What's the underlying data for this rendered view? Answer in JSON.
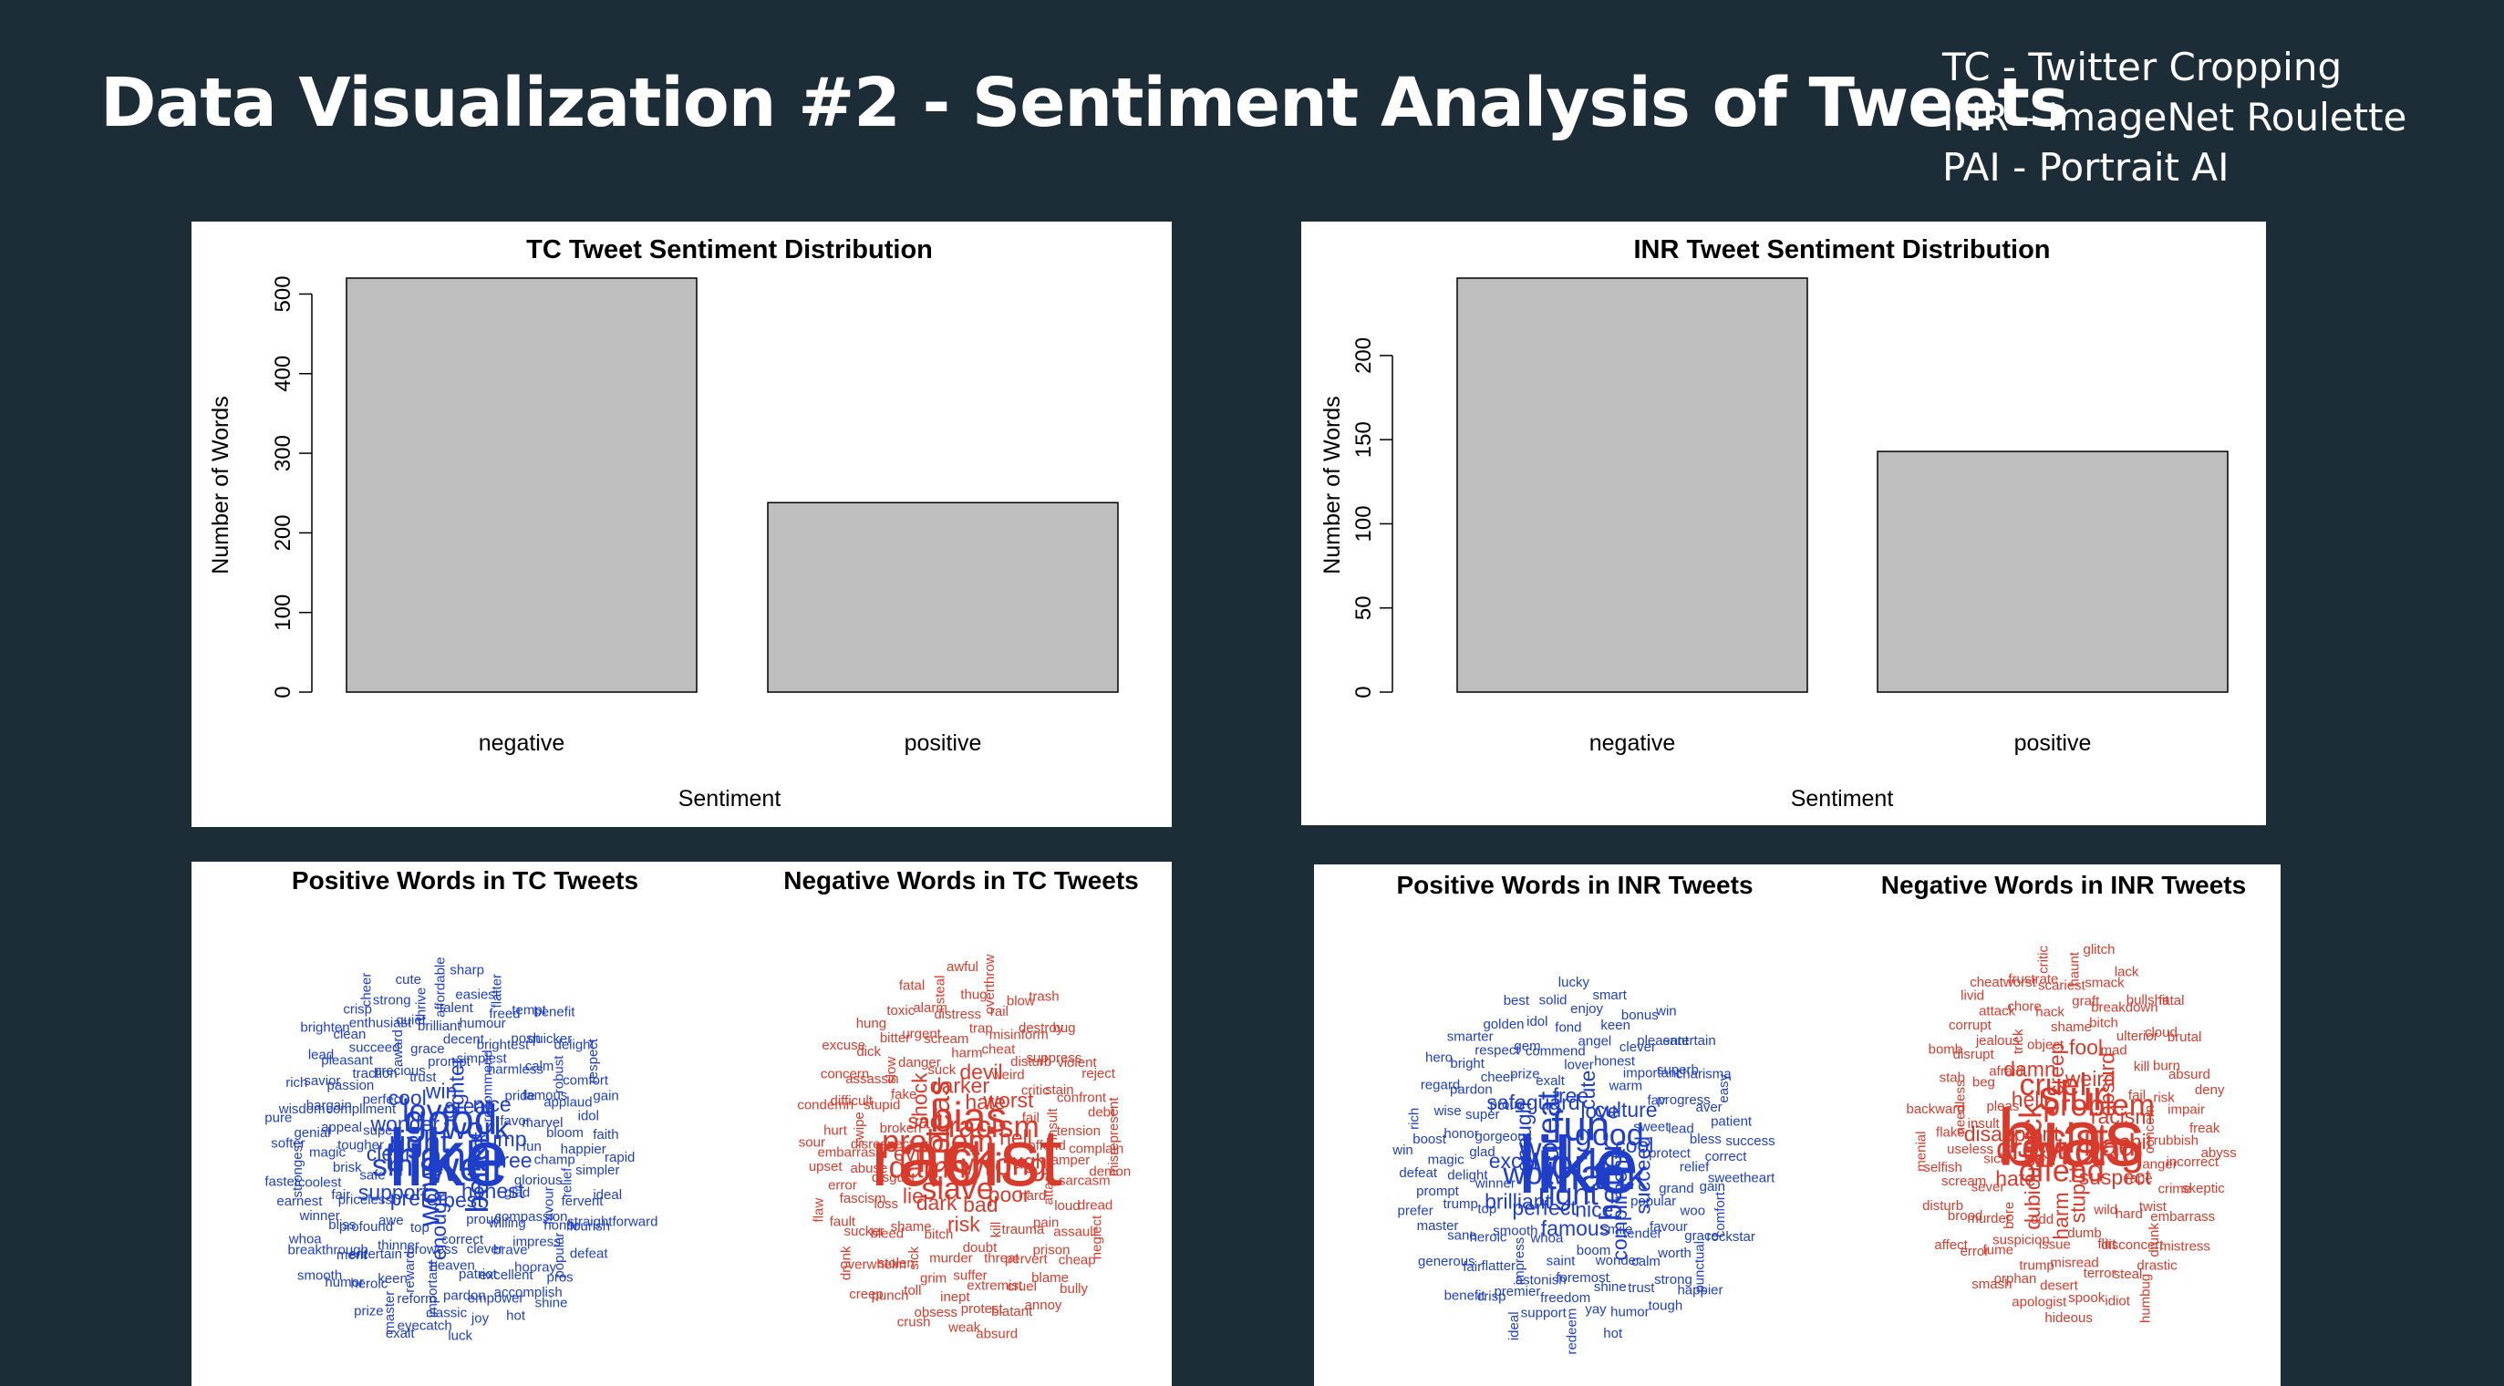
{
  "slide": {
    "title": "Data Visualization #2 - Sentiment Analysis of Tweets",
    "legend": [
      "TC - Twitter Cropping",
      "INR - ImageNet Roulette",
      "PAI - Portrait AI"
    ]
  },
  "colors": {
    "background": "#1c2d38",
    "bar_fill": "#bebebe",
    "positive_words": "#1f3fc8",
    "negative_words": "#d83b2c"
  },
  "chart_data": [
    {
      "type": "bar",
      "title": "TC Tweet Sentiment Distribution",
      "categories": [
        "negative",
        "positive"
      ],
      "values": [
        520,
        238
      ],
      "xlabel": "Sentiment",
      "ylabel": "Number of Words",
      "ylim": [
        0,
        520
      ],
      "yticks": [
        0,
        100,
        200,
        300,
        400,
        500
      ],
      "grid": false
    },
    {
      "type": "bar",
      "title": "INR Tweet Sentiment Distribution",
      "categories": [
        "negative",
        "positive"
      ],
      "values": [
        246,
        143
      ],
      "xlabel": "Sentiment",
      "ylabel": "Number of Words",
      "ylim": [
        0,
        246
      ],
      "yticks": [
        0,
        50,
        100,
        150,
        200
      ],
      "grid": false
    }
  ],
  "wordclouds": {
    "tc_positive": {
      "title": "Positive Words in TC Tweets",
      "words": [
        "like",
        "thank",
        "good",
        "well",
        "right",
        "work",
        "wow",
        "love",
        "better",
        "smile",
        "great",
        "best",
        "wonder",
        "trump",
        "prefer",
        "win",
        "honest",
        "clear",
        "nice",
        "enough",
        "cool",
        "free",
        "support",
        "lighter",
        "proud",
        "super",
        "favor",
        "top",
        "trust",
        "glad",
        "safe",
        "recommend",
        "correct",
        "perfect",
        "fun",
        "awe",
        "prompt",
        "willing",
        "tougher",
        "pride",
        "prowess",
        "precious",
        "glorious",
        "priceless",
        "simplest",
        "clever",
        "compliment",
        "marvel",
        "thinner",
        "grace",
        "compassion",
        "brisk",
        "harmless",
        "heaven",
        "traction",
        "champ",
        "profound",
        "decent",
        "brave",
        "appeal",
        "famous",
        "reward",
        "award",
        "favour",
        "fair",
        "brightest",
        "patriot",
        "passion",
        "bloom",
        "entertain",
        "brilliant",
        "impress",
        "magic",
        "calm",
        "important",
        "succeed",
        "relief",
        "bliss",
        "humour",
        "excellent",
        "bargain",
        "applaud",
        "keen",
        "quiet",
        "honor",
        "coolest",
        "posh",
        "pardon",
        "pleasant",
        "happier",
        "merit",
        "talent",
        "hooray",
        "genial",
        "robust",
        "reform",
        "enthusiast",
        "fervent",
        "winner",
        "freed",
        "empower",
        "savior",
        "idol",
        "heroic",
        "thrive",
        "popular",
        "strongest",
        "quicker",
        "classic",
        "clean",
        "simpler",
        "breakthrough",
        "easiest",
        "accomplish",
        "wisdom",
        "comfort",
        "master",
        "strong",
        "flourish",
        "earnest",
        "tempt",
        "joy",
        "lead",
        "faith",
        "humor",
        "affordable",
        "pros",
        "softer",
        "delight",
        "eyecatch",
        "crisp",
        "ideal",
        "whoa",
        "flatter",
        "hot",
        "rich",
        "gain",
        "prize",
        "cute",
        "defeat",
        "faster",
        "benefit",
        "luck",
        "brighten",
        "rapid",
        "smooth",
        "sharp",
        "shine",
        "pure",
        "respect",
        "exalt",
        "cheer",
        "straightforward"
      ]
    },
    "tc_negative": {
      "title": "Negative Words in TC Tweets",
      "words": [
        "racist",
        "fuck",
        "bias",
        "shit",
        "problem",
        "racism",
        "slave",
        "pleas",
        "wrong",
        "damn",
        "hate",
        "bad",
        "sad",
        "hell",
        "dark",
        "darker",
        "poor",
        "evil",
        "worst",
        "risk",
        "shock",
        "ugh",
        "lie",
        "devil",
        "kill",
        "broken",
        "fail",
        "bitch",
        "suck",
        "hard",
        "disgust",
        "weird",
        "doubt",
        "fake",
        "offend",
        "shame",
        "harm",
        "trauma",
        "disrespect",
        "critic",
        "murder",
        "danger",
        "attack",
        "loss",
        "cheat",
        "threat",
        "stupid",
        "insult",
        "sick",
        "scream",
        "pain",
        "abuse",
        "disturb",
        "suffer",
        "slow",
        "tamper",
        "bleed",
        "trap",
        "pervert",
        "swipe",
        "stain",
        "grim",
        "urgent",
        "loud",
        "fascism",
        "misinform",
        "extremist",
        "assassin",
        "tension",
        "stolen",
        "distress",
        "prison",
        "embarrass",
        "suppress",
        "inept",
        "bitter",
        "sarcasm",
        "sucker",
        "rail",
        "cruel",
        "difficult",
        "confront",
        "toll",
        "alarm",
        "assault",
        "error",
        "destroy",
        "protest",
        "dick",
        "complain",
        "overwhelm",
        "thug",
        "blame",
        "hurt",
        "violent",
        "obsess",
        "toxic",
        "dread",
        "fault",
        "blow",
        "blatant",
        "concern",
        "debt",
        "punch",
        "steal",
        "cheap",
        "upset",
        "bug",
        "weak",
        "hung",
        "demon",
        "drunk",
        "overthrow",
        "annoy",
        "condemn",
        "reject",
        "crush",
        "fatal",
        "neglect",
        "flaw",
        "trash",
        "absurd",
        "excuse",
        "misrepresent",
        "creep",
        "awful",
        "bully",
        "sour"
      ]
    },
    "inr_positive": {
      "title": "Positive Words in INR Tweets",
      "words": [
        "like",
        "work",
        "fun",
        "thank",
        "well",
        "good",
        "right",
        "great",
        "better",
        "wow",
        "love",
        "nice",
        "enough",
        "cool",
        "perfect",
        "free",
        "compliment",
        "excel",
        "culture",
        "famous",
        "safeguard",
        "succeed",
        "brilliant",
        "cute",
        "smile",
        "gorgeous",
        "sweet",
        "whoa",
        "exalt",
        "popular",
        "winner",
        "warm",
        "boom",
        "proud",
        "protect",
        "smooth",
        "lover",
        "tender",
        "glad",
        "fav",
        "saint",
        "prize",
        "grand",
        "top",
        "honest",
        "wonder",
        "super",
        "lead",
        "impress",
        "commend",
        "favour",
        "delight",
        "important",
        "foremost",
        "cheer",
        "relief",
        "heroic",
        "angel",
        "calm",
        "honor",
        "progress",
        "astonish",
        "gem",
        "woo",
        "trump",
        "clever",
        "shine",
        "pardon",
        "bless",
        "flatter",
        "fond",
        "worth",
        "magic",
        "superb",
        "freedom",
        "respect",
        "gain",
        "sane",
        "keen",
        "trust",
        "wise",
        "aver",
        "premier",
        "idol",
        "grace",
        "prompt",
        "pleasant",
        "yay",
        "bright",
        "correct",
        "fair",
        "enjoy",
        "strong",
        "boost",
        "charisma",
        "support",
        "golden",
        "comfort",
        "master",
        "bonus",
        "humor",
        "regard",
        "patient",
        "crisp",
        "solid",
        "punctual",
        "defeat",
        "entertain",
        "redeem",
        "smarter",
        "sweetheart",
        "generous",
        "smart",
        "tough",
        "rich",
        "easy",
        "ideal",
        "best",
        "rockstar",
        "prefer",
        "win",
        "hot",
        "hero",
        "success",
        "benefit",
        "lucky",
        "happier",
        "win"
      ]
    },
    "inr_negative": {
      "title": "Negative Words in INR Tweets",
      "words": [
        "bias",
        "racist",
        "slur",
        "wrong",
        "fuck",
        "problem",
        "offend",
        "cruel",
        "bad",
        "crept",
        "weird",
        "stupid",
        "hell",
        "racism",
        "dubious",
        "creep",
        "suspect",
        "disappoint",
        "absurd",
        "harm",
        "damn",
        "shit",
        "hate",
        "fool",
        "wild",
        "pleas",
        "fail",
        "odd",
        "object",
        "rape",
        "sick",
        "mad",
        "dumb",
        "afraid",
        "concern",
        "bore",
        "shame",
        "hard",
        "insult",
        "kill",
        "issue",
        "trick",
        "anger",
        "sever",
        "bitch",
        "flirt",
        "beg",
        "risk",
        "suspicion",
        "hack",
        "twist",
        "useless",
        "ulterior",
        "misread",
        "jealous",
        "rubbish",
        "murder",
        "graft",
        "disconcert",
        "needless",
        "burn",
        "trump",
        "chore",
        "crime",
        "scream",
        "breakdown",
        "terror",
        "disrupt",
        "impair",
        "fume",
        "scariest",
        "drunk",
        "flake",
        "cloud",
        "desert",
        "attack",
        "incorrect",
        "brood",
        "smack",
        "steal",
        "stab",
        "absurd",
        "orphan",
        "frustrate",
        "embarrass",
        "selfish",
        "bullshit",
        "spook",
        "corrupt",
        "freak",
        "error",
        "haunt",
        "drastic",
        "backward",
        "brutal",
        "apologist",
        "cheatworst",
        "skeptic",
        "disturb",
        "lack",
        "idiot",
        "bomb",
        "deny",
        "smash",
        "critic",
        "mistress",
        "menial",
        "fatal",
        "hideous",
        "livid",
        "abyss",
        "affect",
        "glitch",
        "humbug"
      ]
    }
  }
}
